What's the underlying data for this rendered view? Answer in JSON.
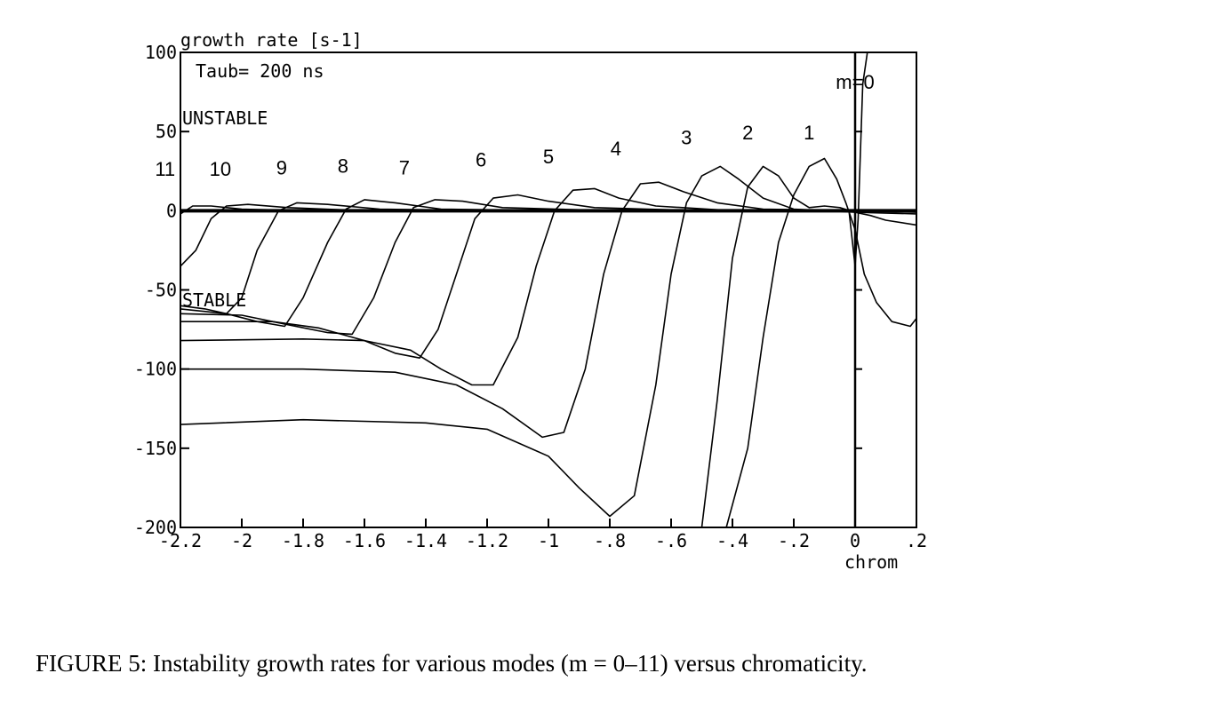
{
  "chart_data": {
    "type": "line",
    "ylabel": "growth rate [s-1]",
    "xlabel": "chrom",
    "xlim": [
      -2.2,
      0.2
    ],
    "ylim": [
      -200,
      100
    ],
    "grid": false,
    "x_ticks": [
      "-2.2",
      "-2",
      "-1.8",
      "-1.6",
      "-1.4",
      "-1.2",
      "-1",
      "-.8",
      "-.6",
      "-.4",
      "-.2",
      "0",
      ".2"
    ],
    "y_ticks": [
      "100",
      "50",
      "0",
      "-50",
      "-100",
      "-150",
      "-200"
    ],
    "annotations": {
      "taub": "Taub= 200 ns",
      "unstable": "UNSTABLE",
      "stable": "STABLE"
    },
    "mode_labels": [
      {
        "text": "m=0",
        "x": 0.0,
        "y": 77
      },
      {
        "text": "1",
        "x": -0.15,
        "y": 45
      },
      {
        "text": "2",
        "x": -0.35,
        "y": 45
      },
      {
        "text": "3",
        "x": -0.55,
        "y": 42
      },
      {
        "text": "4",
        "x": -0.78,
        "y": 35
      },
      {
        "text": "5",
        "x": -1.0,
        "y": 30
      },
      {
        "text": "6",
        "x": -1.22,
        "y": 28
      },
      {
        "text": "7",
        "x": -1.47,
        "y": 23
      },
      {
        "text": "8",
        "x": -1.67,
        "y": 24
      },
      {
        "text": "9",
        "x": -1.87,
        "y": 23
      },
      {
        "text": "10",
        "x": -2.07,
        "y": 22
      },
      {
        "text": "11",
        "x": -2.25,
        "y": 22
      }
    ],
    "series": [
      {
        "label": "m=0",
        "points": [
          [
            -0.02,
            0
          ],
          [
            0.0,
            -35
          ],
          [
            0.01,
            -5
          ],
          [
            0.025,
            80
          ],
          [
            0.04,
            110
          ]
        ]
      },
      {
        "label": "1",
        "points": [
          [
            -0.42,
            -210
          ],
          [
            -0.35,
            -150
          ],
          [
            -0.3,
            -80
          ],
          [
            -0.25,
            -20
          ],
          [
            -0.2,
            10
          ],
          [
            -0.15,
            28
          ],
          [
            -0.1,
            33
          ],
          [
            -0.06,
            20
          ],
          [
            -0.03,
            5
          ],
          [
            0.0,
            -12
          ],
          [
            0.03,
            -40
          ],
          [
            0.07,
            -58
          ],
          [
            0.12,
            -70
          ],
          [
            0.18,
            -73
          ],
          [
            0.2,
            -68
          ]
        ]
      },
      {
        "label": "2",
        "points": [
          [
            -2.2,
            -200
          ],
          [
            -0.5,
            -200
          ],
          [
            -0.45,
            -120
          ],
          [
            -0.4,
            -30
          ],
          [
            -0.35,
            15
          ],
          [
            -0.3,
            28
          ],
          [
            -0.25,
            22
          ],
          [
            -0.2,
            8
          ],
          [
            -0.15,
            2
          ],
          [
            -0.1,
            3
          ],
          [
            -0.05,
            2
          ],
          [
            0.0,
            -1
          ],
          [
            0.05,
            -3
          ],
          [
            0.1,
            -6
          ],
          [
            0.2,
            -9
          ]
        ]
      },
      {
        "label": "3",
        "points": [
          [
            -2.2,
            -135
          ],
          [
            -1.8,
            -132
          ],
          [
            -1.4,
            -134
          ],
          [
            -1.2,
            -138
          ],
          [
            -1.0,
            -155
          ],
          [
            -0.9,
            -175
          ],
          [
            -0.8,
            -193
          ],
          [
            -0.72,
            -180
          ],
          [
            -0.65,
            -110
          ],
          [
            -0.6,
            -40
          ],
          [
            -0.55,
            5
          ],
          [
            -0.5,
            22
          ],
          [
            -0.44,
            28
          ],
          [
            -0.38,
            20
          ],
          [
            -0.3,
            8
          ],
          [
            -0.2,
            1
          ],
          [
            0.0,
            -1
          ],
          [
            0.2,
            -2
          ]
        ]
      },
      {
        "label": "4",
        "points": [
          [
            -2.2,
            -100
          ],
          [
            -1.8,
            -100
          ],
          [
            -1.5,
            -102
          ],
          [
            -1.3,
            -110
          ],
          [
            -1.15,
            -125
          ],
          [
            -1.02,
            -143
          ],
          [
            -0.95,
            -140
          ],
          [
            -0.88,
            -100
          ],
          [
            -0.82,
            -40
          ],
          [
            -0.76,
            0
          ],
          [
            -0.7,
            17
          ],
          [
            -0.64,
            18
          ],
          [
            -0.56,
            12
          ],
          [
            -0.45,
            5
          ],
          [
            -0.3,
            1
          ],
          [
            0.0,
            0
          ],
          [
            0.2,
            -1
          ]
        ]
      },
      {
        "label": "5",
        "points": [
          [
            -2.2,
            -82
          ],
          [
            -1.8,
            -81
          ],
          [
            -1.6,
            -82
          ],
          [
            -1.45,
            -88
          ],
          [
            -1.35,
            -100
          ],
          [
            -1.25,
            -110
          ],
          [
            -1.18,
            -110
          ],
          [
            -1.1,
            -80
          ],
          [
            -1.04,
            -35
          ],
          [
            -0.98,
            0
          ],
          [
            -0.92,
            13
          ],
          [
            -0.85,
            14
          ],
          [
            -0.77,
            8
          ],
          [
            -0.65,
            3
          ],
          [
            -0.4,
            0
          ],
          [
            0.2,
            0
          ]
        ]
      },
      {
        "label": "6",
        "points": [
          [
            -2.2,
            -70
          ],
          [
            -1.9,
            -70
          ],
          [
            -1.75,
            -74
          ],
          [
            -1.6,
            -82
          ],
          [
            -1.5,
            -90
          ],
          [
            -1.42,
            -93
          ],
          [
            -1.36,
            -75
          ],
          [
            -1.3,
            -40
          ],
          [
            -1.24,
            -5
          ],
          [
            -1.18,
            8
          ],
          [
            -1.1,
            10
          ],
          [
            -1.0,
            6
          ],
          [
            -0.85,
            2
          ],
          [
            -0.5,
            0
          ],
          [
            0.2,
            0
          ]
        ]
      },
      {
        "label": "7",
        "points": [
          [
            -2.2,
            -65
          ],
          [
            -2.0,
            -66
          ],
          [
            -1.85,
            -72
          ],
          [
            -1.72,
            -77
          ],
          [
            -1.64,
            -78
          ],
          [
            -1.57,
            -55
          ],
          [
            -1.5,
            -20
          ],
          [
            -1.44,
            2
          ],
          [
            -1.37,
            7
          ],
          [
            -1.28,
            6
          ],
          [
            -1.15,
            2
          ],
          [
            -0.8,
            0
          ],
          [
            0.2,
            0
          ]
        ]
      },
      {
        "label": "8",
        "points": [
          [
            -2.2,
            -62
          ],
          [
            -2.05,
            -65
          ],
          [
            -1.95,
            -70
          ],
          [
            -1.86,
            -73
          ],
          [
            -1.8,
            -55
          ],
          [
            -1.72,
            -20
          ],
          [
            -1.66,
            1
          ],
          [
            -1.6,
            7
          ],
          [
            -1.5,
            5
          ],
          [
            -1.35,
            1
          ],
          [
            -1.0,
            0
          ],
          [
            0.2,
            0
          ]
        ]
      },
      {
        "label": "9",
        "points": [
          [
            -2.2,
            -60
          ],
          [
            -2.12,
            -62
          ],
          [
            -2.05,
            -65
          ],
          [
            -2.0,
            -55
          ],
          [
            -1.95,
            -25
          ],
          [
            -1.88,
            0
          ],
          [
            -1.82,
            5
          ],
          [
            -1.72,
            4
          ],
          [
            -1.55,
            1
          ],
          [
            -1.2,
            0
          ],
          [
            0.2,
            0
          ]
        ]
      },
      {
        "label": "10",
        "points": [
          [
            -2.2,
            -35
          ],
          [
            -2.15,
            -25
          ],
          [
            -2.1,
            -5
          ],
          [
            -2.05,
            3
          ],
          [
            -1.98,
            4
          ],
          [
            -1.85,
            2
          ],
          [
            -1.6,
            0
          ],
          [
            0.2,
            0
          ]
        ]
      },
      {
        "label": "11",
        "points": [
          [
            -2.2,
            -2
          ],
          [
            -2.16,
            3
          ],
          [
            -2.1,
            3
          ],
          [
            -2.0,
            1
          ],
          [
            -1.8,
            0
          ],
          [
            0.2,
            0
          ]
        ]
      }
    ]
  },
  "caption": "FIGURE 5: Instability growth rates for various modes (m = 0–11) versus chromaticity."
}
